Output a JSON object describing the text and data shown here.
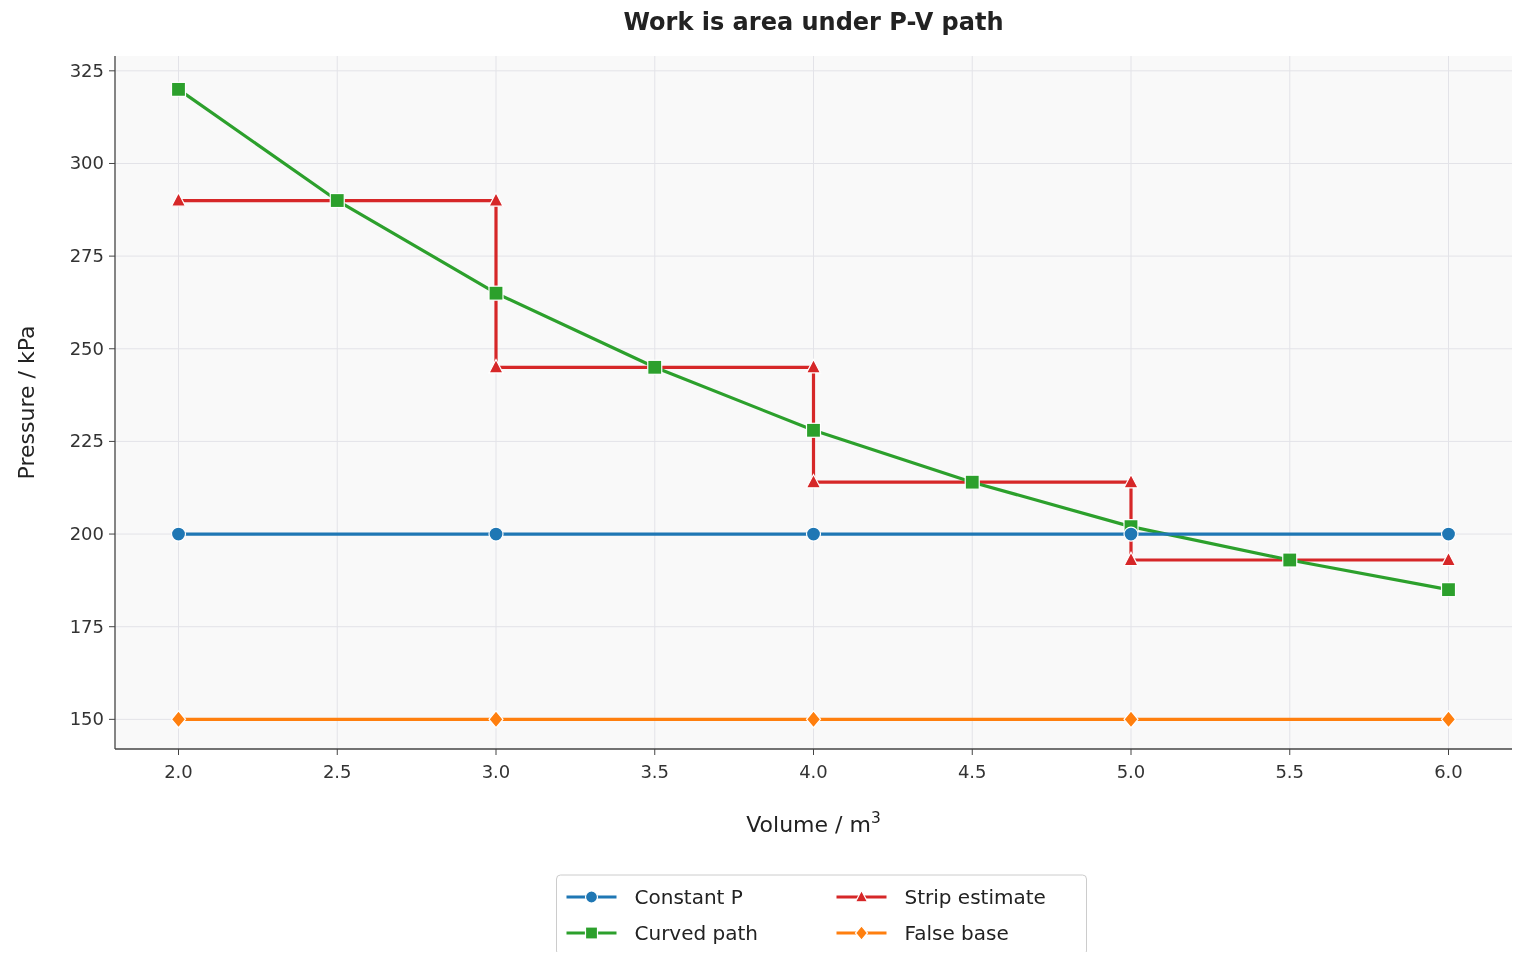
{
  "chart_data": {
    "type": "line",
    "title": "Work is area under P-V path",
    "xlabel": "Volume / m$^{3}$",
    "ylabel": "Pressure / kPa",
    "xlim": [
      1.8,
      6.2
    ],
    "xticks": [
      {
        "value": 2,
        "label": "2.0"
      },
      {
        "value": 2.5,
        "label": "2.5"
      },
      {
        "value": 3,
        "label": "3.0"
      },
      {
        "value": 3.5,
        "label": "3.5"
      },
      {
        "value": 4,
        "label": "4.0"
      },
      {
        "value": 4.5,
        "label": "4.5"
      },
      {
        "value": 5,
        "label": "5.0"
      },
      {
        "value": 5.5,
        "label": "5.5"
      },
      {
        "value": 6,
        "label": "6.0"
      }
    ],
    "ylim": [
      142,
      329
    ],
    "yticks": [
      150,
      175,
      200,
      225,
      250,
      275,
      300,
      325
    ],
    "grid": true,
    "legend": "bottom",
    "line_style": "solid",
    "series": [
      {
        "name": "Constant P",
        "color": "#1f77b4",
        "marker": "circle",
        "x": [
          2,
          3,
          4,
          5,
          6
        ],
        "values": [
          200,
          200,
          200,
          200,
          200
        ]
      },
      {
        "name": "Curved path",
        "color": "#2ca02c",
        "marker": "square",
        "x": [
          2,
          2.5,
          3,
          3.5,
          4,
          4.5,
          5,
          5.5,
          6
        ],
        "values": [
          320,
          290,
          265,
          245,
          228,
          214,
          202,
          193,
          185
        ]
      },
      {
        "name": "Strip estimate",
        "color": "#d62728",
        "marker": "triangle",
        "x": [
          2,
          3,
          3,
          4,
          4,
          5,
          5,
          6
        ],
        "values": [
          290,
          290,
          245,
          245,
          214,
          214,
          193,
          193
        ]
      },
      {
        "name": "False base",
        "color": "#ff7f0e",
        "marker": "diamond",
        "x": [
          2,
          3,
          4,
          5,
          6
        ],
        "values": [
          150,
          150,
          150,
          150,
          150
        ]
      }
    ]
  }
}
